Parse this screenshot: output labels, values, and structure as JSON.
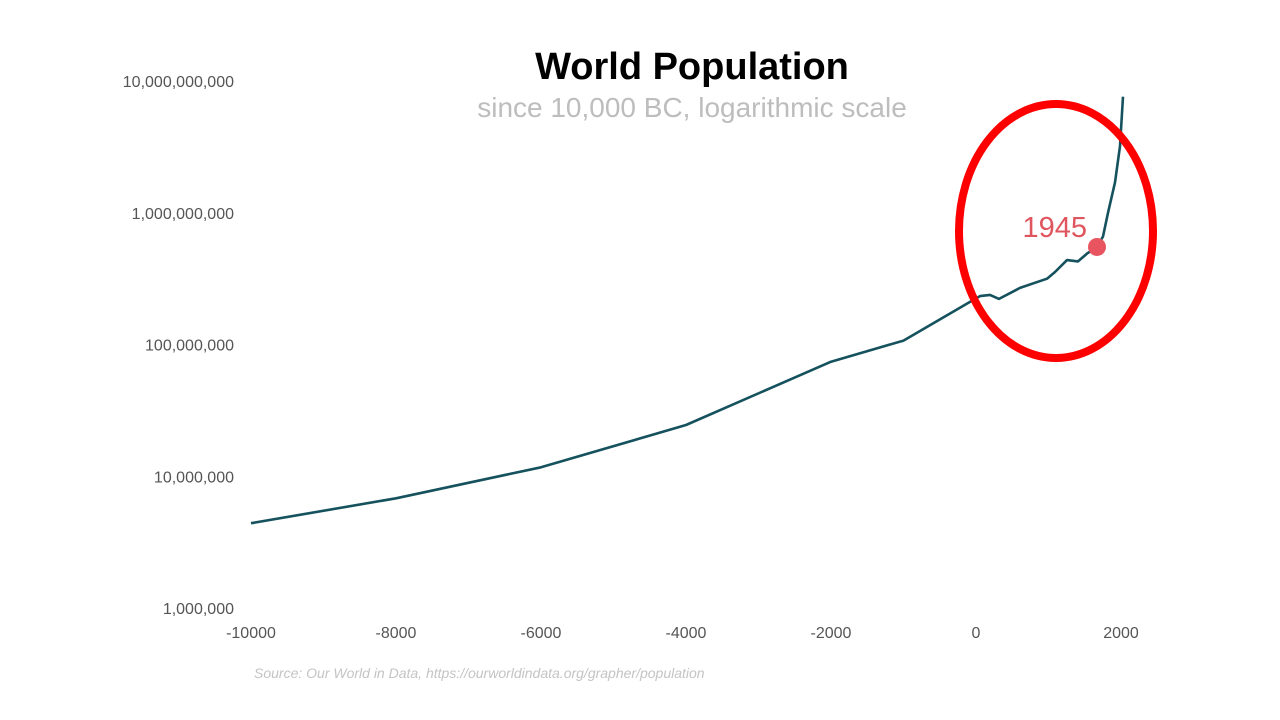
{
  "chart_data": {
    "type": "line",
    "title": "World Population",
    "subtitle": "since 10,000 BC, logarithmic scale",
    "xlabel": "",
    "ylabel": "",
    "y_scale": "log",
    "xlim": [
      -10000,
      2000
    ],
    "ylim": [
      1000000,
      10000000000
    ],
    "grid": false,
    "x_ticks": [
      -10000,
      -8000,
      -6000,
      -4000,
      -2000,
      0,
      2000
    ],
    "x_tick_labels": [
      "-10000",
      "-8000",
      "-6000",
      "-4000",
      "-2000",
      "0",
      "2000"
    ],
    "y_ticks": [
      1000000,
      10000000,
      100000000,
      1000000000,
      10000000000
    ],
    "y_tick_labels": [
      "1,000,000",
      "10,000,000",
      "100,000,000",
      "1,000,000,000",
      "10,000,000,000"
    ],
    "line_color": "#15525e",
    "series": [
      {
        "x": [
          -10000,
          -8000,
          -6000,
          -4000,
          -2000,
          -1000,
          0,
          55,
          193,
          317,
          607,
          979,
          1090,
          1255,
          1407,
          1531,
          1669,
          1752,
          1821,
          1917,
          1986,
          2028
        ],
        "y": [
          4400000,
          6800000,
          11700000,
          24500000,
          74000000,
          107000000,
          224000000,
          233000000,
          238000000,
          222000000,
          269000000,
          316000000,
          355000000,
          437000000,
          427000000,
          490000000,
          550000000,
          660000000,
          1000000000,
          1700000000,
          3200000000,
          7600000000
        ]
      }
    ],
    "annotations": [
      {
        "label": "1945",
        "x": 1669,
        "y": 550000000,
        "color": "#e8545f"
      }
    ],
    "highlight_color": "#ff0000",
    "source": "Source: Our World in Data, https://ourworldindata.org/grapher/population"
  }
}
